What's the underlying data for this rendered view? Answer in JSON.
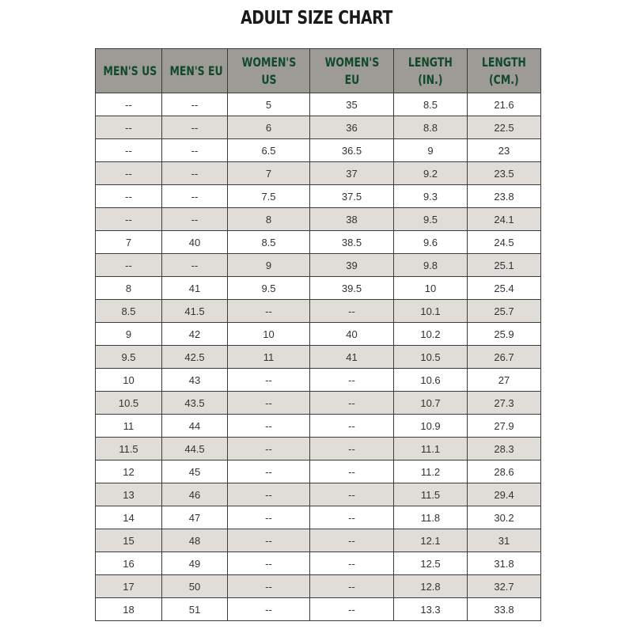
{
  "title": "ADULT SIZE CHART",
  "columns": [
    "MEN'S US",
    "MEN'S EU",
    "WOMEN'S\nUS",
    "WOMEN'S\nEU",
    "LENGTH\n(IN.)",
    "LENGTH\n(CM.)"
  ],
  "rows": [
    [
      "--",
      "--",
      "5",
      "35",
      "8.5",
      "21.6"
    ],
    [
      "--",
      "--",
      "6",
      "36",
      "8.8",
      "22.5"
    ],
    [
      "--",
      "--",
      "6.5",
      "36.5",
      "9",
      "23"
    ],
    [
      "--",
      "--",
      "7",
      "37",
      "9.2",
      "23.5"
    ],
    [
      "--",
      "--",
      "7.5",
      "37.5",
      "9.3",
      "23.8"
    ],
    [
      "--",
      "--",
      "8",
      "38",
      "9.5",
      "24.1"
    ],
    [
      "7",
      "40",
      "8.5",
      "38.5",
      "9.6",
      "24.5"
    ],
    [
      "--",
      "--",
      "9",
      "39",
      "9.8",
      "25.1"
    ],
    [
      "8",
      "41",
      "9.5",
      "39.5",
      "10",
      "25.4"
    ],
    [
      "8.5",
      "41.5",
      "--",
      "--",
      "10.1",
      "25.7"
    ],
    [
      "9",
      "42",
      "10",
      "40",
      "10.2",
      "25.9"
    ],
    [
      "9.5",
      "42.5",
      "11",
      "41",
      "10.5",
      "26.7"
    ],
    [
      "10",
      "43",
      "--",
      "--",
      "10.6",
      "27"
    ],
    [
      "10.5",
      "43.5",
      "--",
      "--",
      "10.7",
      "27.3"
    ],
    [
      "11",
      "44",
      "--",
      "--",
      "10.9",
      "27.9"
    ],
    [
      "11.5",
      "44.5",
      "--",
      "--",
      "11.1",
      "28.3"
    ],
    [
      "12",
      "45",
      "--",
      "--",
      "11.2",
      "28.6"
    ],
    [
      "13",
      "46",
      "--",
      "--",
      "11.5",
      "29.4"
    ],
    [
      "14",
      "47",
      "--",
      "--",
      "11.8",
      "30.2"
    ],
    [
      "15",
      "48",
      "--",
      "--",
      "12.1",
      "31"
    ],
    [
      "16",
      "49",
      "--",
      "--",
      "12.5",
      "31.8"
    ],
    [
      "17",
      "50",
      "--",
      "--",
      "12.8",
      "32.7"
    ],
    [
      "18",
      "51",
      "--",
      "--",
      "13.3",
      "33.8"
    ]
  ],
  "colors": {
    "header_bg": "#9e9a96",
    "header_text": "#0f4a2a",
    "stripe": "#e0dcd8"
  }
}
